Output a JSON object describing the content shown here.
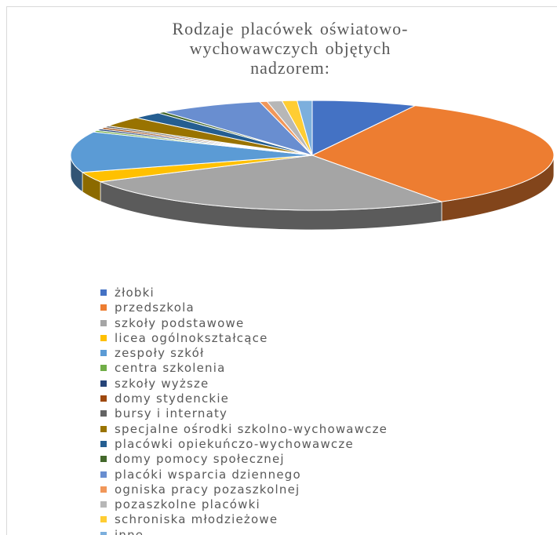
{
  "chart_data": {
    "type": "pie3d",
    "title": "Rodzaje placówek oświatowo-wychowawczych  objętych nadzorem:",
    "categories": [
      "żłobki",
      "przedszkola",
      "szkoły podstawowe",
      "licea ogólnokształcące",
      "zespoły szkół",
      "centra szkolenia",
      "szkoły wyższe",
      "domy stydenckie",
      "bursy i internaty",
      "specjalne ośrodki szkolno-wychowawcze",
      "placówki opiekuńczo-wychowawcze",
      "domy pomocy społecznej",
      "placóki wsparcia dziennego",
      "ogniska pracy pozaszkolnej",
      "pozaszkolne placówki",
      "schroniska młodzieżowe",
      "inne"
    ],
    "values": [
      7,
      34,
      26,
      3,
      12,
      0.5,
      0.5,
      0.5,
      0.5,
      3,
      2,
      0.5,
      7,
      0.5,
      1,
      1,
      1
    ],
    "colors": [
      "#4472c4",
      "#ed7d31",
      "#a5a5a5",
      "#ffc000",
      "#5b9bd5",
      "#70ad47",
      "#264478",
      "#9e480e",
      "#636363",
      "#997300",
      "#255e91",
      "#43682b",
      "#698ed0",
      "#f1975a",
      "#b7b7b7",
      "#ffcd33",
      "#7cafdd"
    ],
    "legend": "bottom"
  }
}
